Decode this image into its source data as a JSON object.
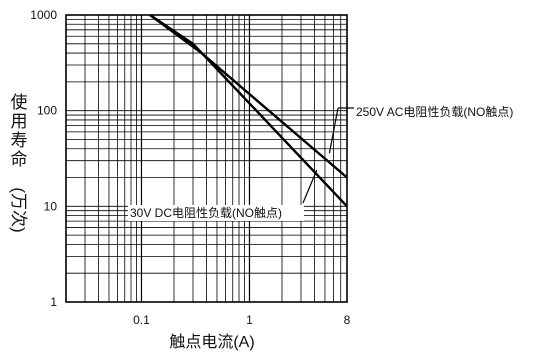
{
  "chart_data": {
    "type": "line",
    "title": "",
    "xlabel": "触点电流(A)",
    "ylabel": "使用寿命 (万次)",
    "x_scale": "log",
    "y_scale": "log",
    "xlim": [
      0.02,
      8
    ],
    "ylim": [
      1,
      1000
    ],
    "grid": true,
    "x_ticks": [
      {
        "value": 0.1,
        "label": "0.1"
      },
      {
        "value": 1,
        "label": "1"
      },
      {
        "value": 8,
        "label": "8"
      }
    ],
    "y_ticks": [
      {
        "value": 1,
        "label": "1"
      },
      {
        "value": 10,
        "label": "10"
      },
      {
        "value": 100,
        "label": "100"
      },
      {
        "value": 1000,
        "label": "1000"
      }
    ],
    "series": [
      {
        "name": "250V AC电阻性负载(NO触点)",
        "points": [
          [
            0.12,
            1000
          ],
          [
            0.35,
            410
          ],
          [
            8,
            20
          ]
        ],
        "annotation_at": [
          5.5,
          36
        ]
      },
      {
        "name": "30V DC电阻性负载(NO触点)",
        "points": [
          [
            0.12,
            1000
          ],
          [
            0.3,
            500
          ],
          [
            8,
            10
          ]
        ],
        "annotation_at": [
          4.2,
          24
        ]
      }
    ]
  }
}
